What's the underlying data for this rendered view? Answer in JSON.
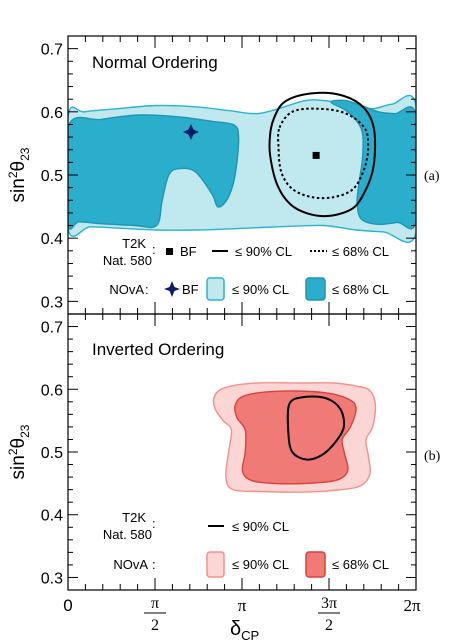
{
  "chart_data": [
    {
      "type": "contour",
      "panel_label": "(a)",
      "title": "Normal Ordering",
      "xlabel": "δCP",
      "ylabel": "sin²θ23",
      "xlim": [
        0,
        6.2832
      ],
      "ylim": [
        0.28,
        0.72
      ],
      "yticks": [
        "0.3",
        "0.4",
        "0.5",
        "0.6",
        "0.7"
      ],
      "legend": {
        "t2k_label_line1": "T2K",
        "t2k_label_line2": "Nat. 580",
        "nova_label": "NOvA",
        "bf_label": "BF",
        "cl90_label": "≤ 90% CL",
        "cl68_label": "≤ 68% CL"
      },
      "series": [
        {
          "name": "T2K",
          "kind": "best_fit",
          "x": 4.48,
          "y": 0.531
        },
        {
          "name": "T2K",
          "kind": "contour_90",
          "polygon": [
            [
              3.72,
              0.59
            ],
            [
              3.9,
              0.615
            ],
            [
              4.3,
              0.628
            ],
            [
              4.85,
              0.628
            ],
            [
              5.3,
              0.61
            ],
            [
              5.52,
              0.575
            ],
            [
              5.52,
              0.515
            ],
            [
              5.35,
              0.472
            ],
            [
              5.1,
              0.445
            ],
            [
              4.6,
              0.435
            ],
            [
              4.1,
              0.448
            ],
            [
              3.8,
              0.48
            ],
            [
              3.65,
              0.53
            ],
            [
              3.65,
              0.565
            ]
          ]
        },
        {
          "name": "T2K",
          "kind": "contour_68",
          "polygon": [
            [
              3.82,
              0.575
            ],
            [
              4.05,
              0.6
            ],
            [
              4.5,
              0.605
            ],
            [
              5.0,
              0.598
            ],
            [
              5.35,
              0.575
            ],
            [
              5.42,
              0.545
            ],
            [
              5.35,
              0.51
            ],
            [
              5.15,
              0.478
            ],
            [
              4.8,
              0.465
            ],
            [
              4.4,
              0.465
            ],
            [
              4.05,
              0.478
            ],
            [
              3.85,
              0.505
            ],
            [
              3.8,
              0.545
            ]
          ]
        },
        {
          "name": "NOvA",
          "kind": "best_fit",
          "x": 2.22,
          "y": 0.568
        },
        {
          "name": "NOvA",
          "kind": "contour_90",
          "polygon": [
            [
              0,
              0.592
            ],
            [
              0.3,
              0.6
            ],
            [
              0.9,
              0.605
            ],
            [
              1.6,
              0.61
            ],
            [
              2.3,
              0.608
            ],
            [
              2.9,
              0.602
            ],
            [
              3.4,
              0.597
            ],
            [
              3.8,
              0.605
            ],
            [
              4.3,
              0.618
            ],
            [
              4.7,
              0.617
            ],
            [
              5.1,
              0.61
            ],
            [
              5.5,
              0.605
            ],
            [
              5.85,
              0.612
            ],
            [
              6.2832,
              0.61
            ],
            [
              6.2832,
              0.408
            ],
            [
              5.7,
              0.41
            ],
            [
              5.2,
              0.413
            ],
            [
              4.6,
              0.42
            ],
            [
              3.8,
              0.418
            ],
            [
              3.0,
              0.415
            ],
            [
              2.3,
              0.413
            ],
            [
              1.6,
              0.413
            ],
            [
              0.9,
              0.416
            ],
            [
              0.4,
              0.418
            ],
            [
              0,
              0.415
            ]
          ]
        },
        {
          "name": "NOvA",
          "kind": "contour_68",
          "polygon": [
            [
              0,
              0.576
            ],
            [
              0.6,
              0.588
            ],
            [
              1.3,
              0.595
            ],
            [
              2.0,
              0.592
            ],
            [
              2.6,
              0.585
            ],
            [
              3.0,
              0.579
            ],
            [
              3.08,
              0.56
            ],
            [
              3.05,
              0.52
            ],
            [
              2.98,
              0.485
            ],
            [
              2.85,
              0.458
            ],
            [
              2.7,
              0.45
            ],
            [
              2.6,
              0.47
            ],
            [
              2.3,
              0.505
            ],
            [
              2.0,
              0.51
            ],
            [
              1.82,
              0.5
            ],
            [
              1.7,
              0.46
            ],
            [
              1.6,
              0.42
            ],
            [
              1.2,
              0.42
            ],
            [
              0.6,
              0.423
            ],
            [
              0.2,
              0.426
            ],
            [
              0,
              0.425
            ]
          ]
        },
        {
          "name": "NOvA",
          "kind": "contour_68",
          "polygon": [
            [
              4.75,
              0.615
            ],
            [
              5.05,
              0.6
            ],
            [
              5.3,
              0.572
            ],
            [
              5.32,
              0.53
            ],
            [
              5.25,
              0.485
            ],
            [
              5.22,
              0.455
            ],
            [
              5.3,
              0.43
            ],
            [
              5.6,
              0.422
            ],
            [
              5.95,
              0.425
            ],
            [
              6.2832,
              0.428
            ],
            [
              6.2832,
              0.595
            ],
            [
              5.9,
              0.597
            ],
            [
              5.6,
              0.6
            ],
            [
              5.3,
              0.61
            ],
            [
              5.0,
              0.618
            ]
          ]
        }
      ]
    },
    {
      "type": "contour",
      "panel_label": "(b)",
      "title": "Inverted Ordering",
      "xlabel": "δCP",
      "ylabel": "sin²θ23",
      "xlim": [
        0,
        6.2832
      ],
      "ylim": [
        0.28,
        0.72
      ],
      "xticks": [
        "0",
        "π/2",
        "π",
        "3π/2",
        "2π"
      ],
      "yticks": [
        "0.3",
        "0.4",
        "0.5",
        "0.6",
        "0.7"
      ],
      "legend": {
        "t2k_label_line1": "T2K",
        "t2k_label_line2": "Nat. 580",
        "nova_label": "NOvA",
        "cl90_label": "≤ 90% CL",
        "cl68_label": "≤ 68% CL"
      },
      "series": [
        {
          "name": "T2K",
          "kind": "contour_90",
          "polygon": [
            [
              4.0,
              0.577
            ],
            [
              4.3,
              0.588
            ],
            [
              4.68,
              0.585
            ],
            [
              4.92,
              0.568
            ],
            [
              4.98,
              0.54
            ],
            [
              4.82,
              0.515
            ],
            [
              4.58,
              0.495
            ],
            [
              4.3,
              0.488
            ],
            [
              4.05,
              0.5
            ],
            [
              3.98,
              0.53
            ]
          ]
        },
        {
          "name": "NOvA",
          "kind": "contour_90",
          "polygon": [
            [
              2.65,
              0.59
            ],
            [
              2.85,
              0.603
            ],
            [
              3.4,
              0.61
            ],
            [
              4.2,
              0.61
            ],
            [
              4.8,
              0.61
            ],
            [
              5.2,
              0.605
            ],
            [
              5.45,
              0.598
            ],
            [
              5.55,
              0.575
            ],
            [
              5.5,
              0.54
            ],
            [
              5.38,
              0.52
            ],
            [
              5.42,
              0.495
            ],
            [
              5.45,
              0.465
            ],
            [
              5.25,
              0.445
            ],
            [
              4.7,
              0.438
            ],
            [
              4.1,
              0.436
            ],
            [
              3.5,
              0.437
            ],
            [
              2.98,
              0.44
            ],
            [
              2.85,
              0.46
            ],
            [
              2.9,
              0.5
            ],
            [
              2.95,
              0.535
            ],
            [
              2.8,
              0.55
            ],
            [
              2.65,
              0.57
            ]
          ]
        },
        {
          "name": "NOvA",
          "kind": "contour_68",
          "polygon": [
            [
              3.02,
              0.575
            ],
            [
              3.2,
              0.59
            ],
            [
              3.8,
              0.597
            ],
            [
              4.6,
              0.595
            ],
            [
              5.05,
              0.585
            ],
            [
              5.2,
              0.57
            ],
            [
              5.1,
              0.54
            ],
            [
              4.95,
              0.52
            ],
            [
              5.0,
              0.495
            ],
            [
              5.05,
              0.47
            ],
            [
              4.85,
              0.455
            ],
            [
              4.3,
              0.45
            ],
            [
              3.7,
              0.45
            ],
            [
              3.3,
              0.455
            ],
            [
              3.15,
              0.47
            ],
            [
              3.2,
              0.5
            ],
            [
              3.2,
              0.535
            ],
            [
              3.05,
              0.555
            ]
          ]
        }
      ]
    }
  ],
  "colors": {
    "nova_no_90_fill": "#bfe8ef",
    "nova_no_90_stroke": "#2bb3cc",
    "nova_no_68_fill": "#2aaecb",
    "nova_io_90_fill": "#fcd6d4",
    "nova_io_90_stroke": "#f4908c",
    "nova_io_68_fill": "#f07b76",
    "nova_io_68_stroke": "#d9413c",
    "nova_bf": "#0d1b6b",
    "t2k": "#000000"
  }
}
